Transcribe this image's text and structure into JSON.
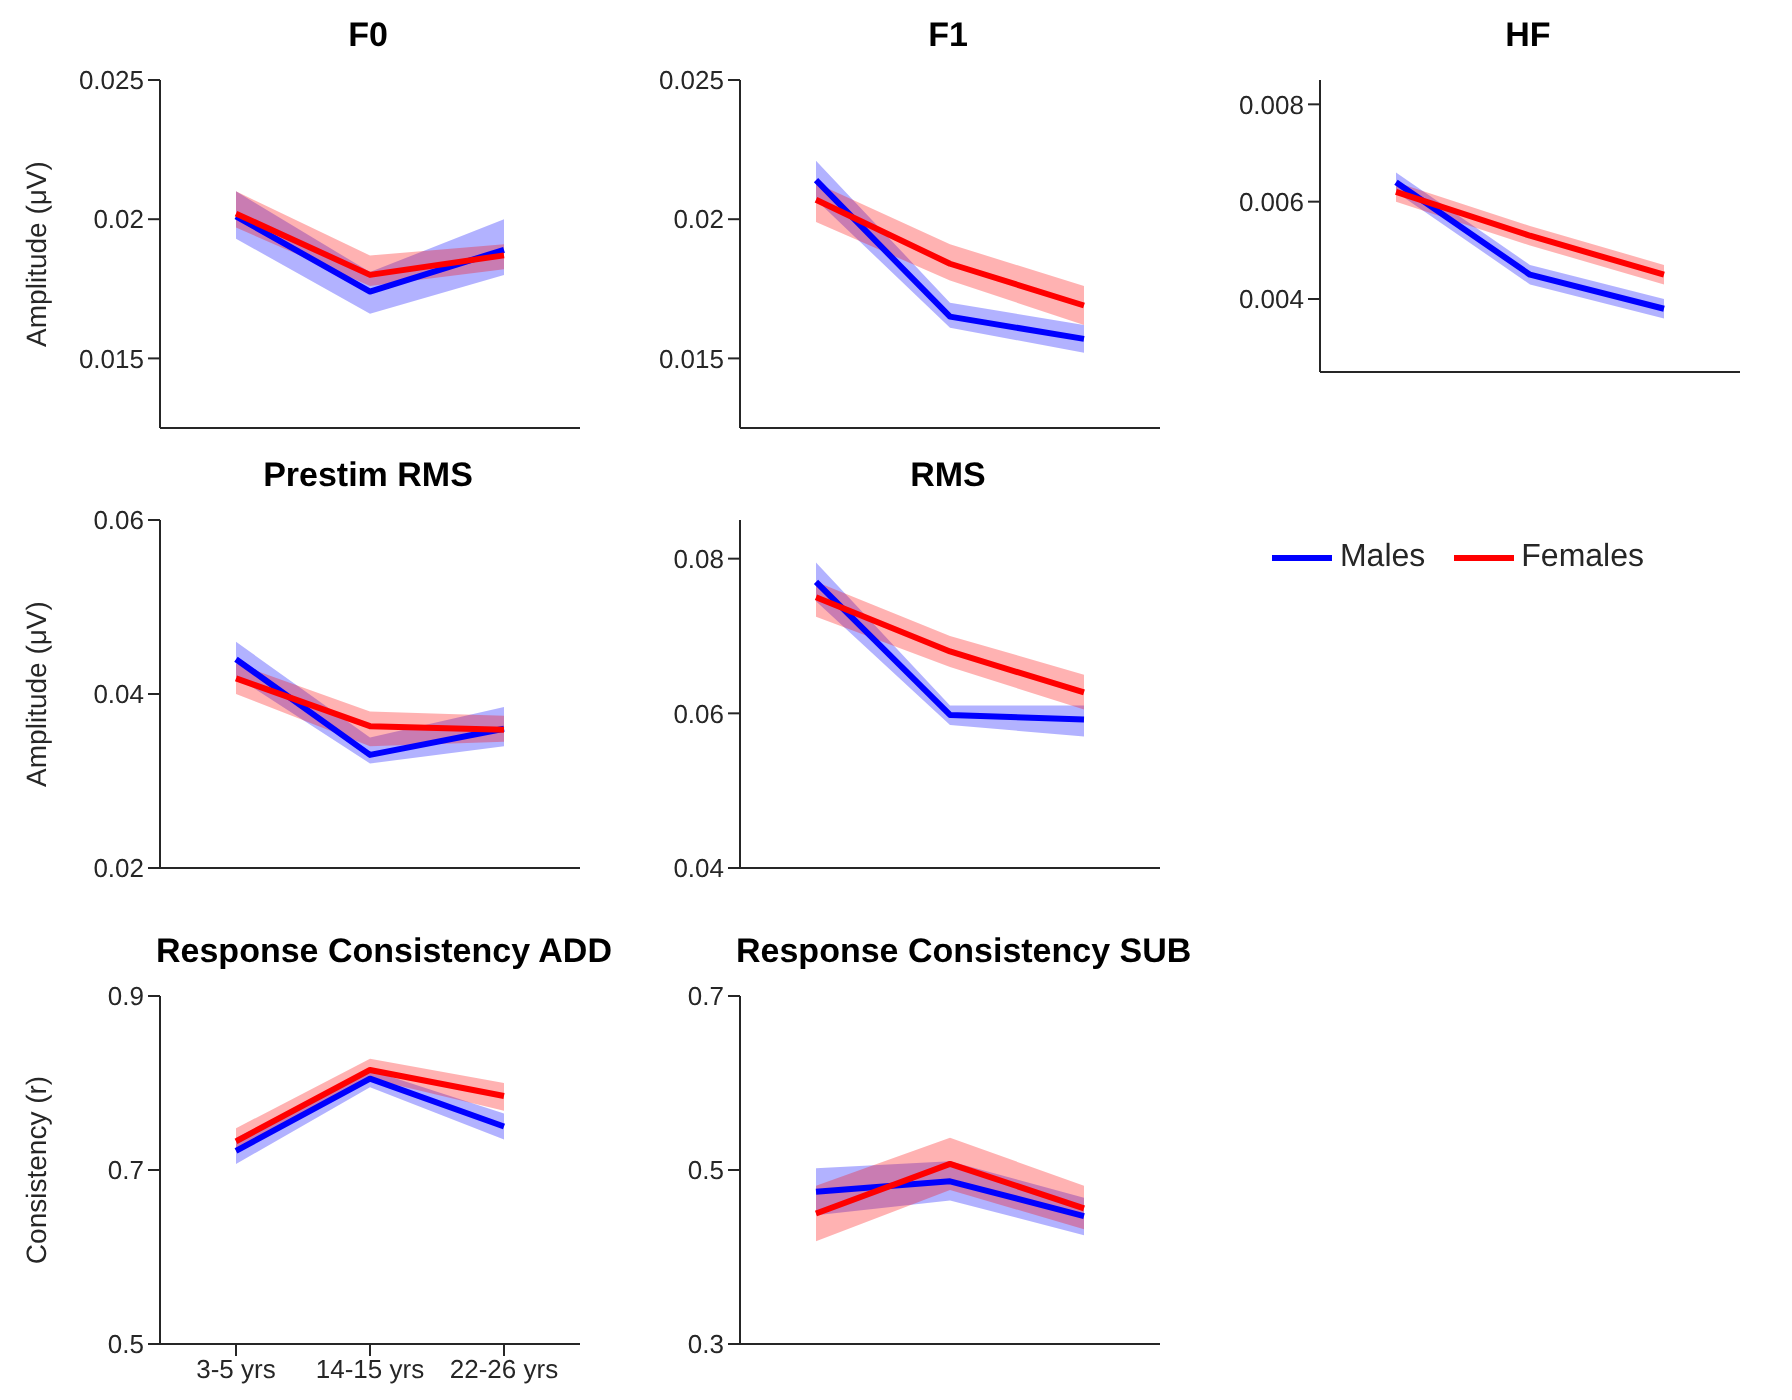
{
  "chart_data": [
    {
      "type": "line",
      "title": "F0",
      "ylabel": "Amplitude (μV)",
      "categories": [
        null,
        null,
        null
      ],
      "ylim": [
        0.0125,
        0.025
      ],
      "yticks": [
        0.015,
        0.02,
        0.025
      ],
      "series": [
        {
          "color": "#0000ff",
          "values": [
            0.0201,
            0.0174,
            0.0189
          ],
          "lower": [
            0.0193,
            0.0166,
            0.018
          ],
          "upper": [
            0.021,
            0.0181,
            0.02
          ]
        },
        {
          "color": "#ff0000",
          "values": [
            0.0202,
            0.018,
            0.0187
          ],
          "lower": [
            0.0197,
            0.0176,
            0.0182
          ],
          "upper": [
            0.021,
            0.0187,
            0.0191
          ]
        }
      ]
    },
    {
      "type": "line",
      "title": "F1",
      "categories": [
        null,
        null,
        null
      ],
      "ylim": [
        0.0125,
        0.025
      ],
      "yticks": [
        0.015,
        0.02,
        0.025
      ],
      "series": [
        {
          "color": "#0000ff",
          "values": [
            0.0214,
            0.0165,
            0.0157
          ],
          "lower": [
            0.0207,
            0.0161,
            0.0152
          ],
          "upper": [
            0.0221,
            0.017,
            0.0162
          ]
        },
        {
          "color": "#ff0000",
          "values": [
            0.0207,
            0.0184,
            0.0169
          ],
          "lower": [
            0.0199,
            0.0178,
            0.0162
          ],
          "upper": [
            0.0213,
            0.0191,
            0.0176
          ]
        }
      ]
    },
    {
      "type": "line",
      "title": "HF",
      "categories": [
        null,
        null,
        null
      ],
      "ylim": [
        0.0025,
        0.0085
      ],
      "yticks": [
        0.004,
        0.006,
        0.008
      ],
      "legend": "bottom",
      "series": [
        {
          "name": "Males",
          "color": "#0000ff",
          "values": [
            0.0064,
            0.0045,
            0.0038
          ],
          "lower": [
            0.0062,
            0.0043,
            0.0036
          ],
          "upper": [
            0.0066,
            0.0047,
            0.004
          ]
        },
        {
          "name": "Females",
          "color": "#ff0000",
          "values": [
            0.0062,
            0.0053,
            0.0045
          ],
          "lower": [
            0.006,
            0.0051,
            0.0043
          ],
          "upper": [
            0.0064,
            0.0055,
            0.0047
          ]
        }
      ]
    },
    {
      "type": "line",
      "title": "Prestim RMS",
      "ylabel": "Amplitude (μV)",
      "categories": [
        null,
        null,
        null
      ],
      "ylim": [
        0.02,
        0.06
      ],
      "yticks": [
        0.02,
        0.04,
        0.06
      ],
      "series": [
        {
          "color": "#0000ff",
          "values": [
            0.044,
            0.033,
            0.036
          ],
          "lower": [
            0.042,
            0.032,
            0.034
          ],
          "upper": [
            0.046,
            0.035,
            0.0385
          ]
        },
        {
          "color": "#ff0000",
          "values": [
            0.0418,
            0.0363,
            0.0359
          ],
          "lower": [
            0.04,
            0.034,
            0.0345
          ],
          "upper": [
            0.0435,
            0.038,
            0.0375
          ]
        }
      ]
    },
    {
      "type": "line",
      "title": "RMS",
      "categories": [
        null,
        null,
        null
      ],
      "ylim": [
        0.04,
        0.085
      ],
      "yticks": [
        0.04,
        0.06,
        0.08
      ],
      "series": [
        {
          "color": "#0000ff",
          "values": [
            0.077,
            0.0598,
            0.0592
          ],
          "lower": [
            0.0745,
            0.0585,
            0.057
          ],
          "upper": [
            0.0795,
            0.061,
            0.061
          ]
        },
        {
          "color": "#ff0000",
          "values": [
            0.075,
            0.068,
            0.0627
          ],
          "lower": [
            0.0725,
            0.066,
            0.0605
          ],
          "upper": [
            0.077,
            0.07,
            0.065
          ]
        }
      ]
    },
    {
      "type": "line",
      "title": "Response Consistency ADD",
      "ylabel": "Consistency (r)",
      "categories": [
        "3-5 yrs",
        "14-15 yrs",
        "22-26 yrs"
      ],
      "ylim": [
        0.5,
        0.9
      ],
      "yticks": [
        0.5,
        0.7,
        0.9
      ],
      "series": [
        {
          "color": "#0000ff",
          "values": [
            0.722,
            0.805,
            0.75
          ],
          "lower": [
            0.707,
            0.795,
            0.735
          ],
          "upper": [
            0.737,
            0.815,
            0.765
          ]
        },
        {
          "color": "#ff0000",
          "values": [
            0.733,
            0.815,
            0.785
          ],
          "lower": [
            0.72,
            0.805,
            0.768
          ],
          "upper": [
            0.748,
            0.828,
            0.8
          ]
        }
      ]
    },
    {
      "type": "line",
      "title": "Response Consistency SUB",
      "categories": [
        null,
        null,
        null
      ],
      "ylim": [
        0.3,
        0.7
      ],
      "yticks": [
        0.3,
        0.5,
        0.7
      ],
      "series": [
        {
          "color": "#0000ff",
          "values": [
            0.475,
            0.487,
            0.447
          ],
          "lower": [
            0.448,
            0.465,
            0.425
          ],
          "upper": [
            0.502,
            0.51,
            0.468
          ]
        },
        {
          "color": "#ff0000",
          "values": [
            0.45,
            0.507,
            0.456
          ],
          "lower": [
            0.418,
            0.477,
            0.432
          ],
          "upper": [
            0.482,
            0.537,
            0.482
          ]
        }
      ]
    }
  ]
}
